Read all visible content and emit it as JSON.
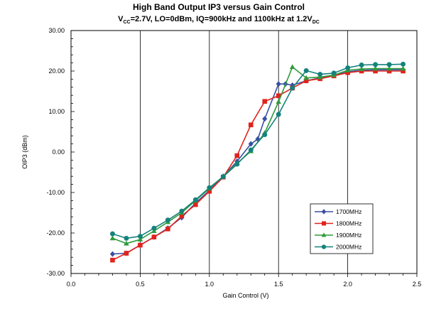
{
  "chart_data": {
    "type": "line",
    "title": "High Band Output IP3 versus Gain Control",
    "subtitle": {
      "parts": [
        {
          "text": "V",
          "sub": false
        },
        {
          "text": "CC",
          "sub": true
        },
        {
          "text": "=2.7V, LO=0dBm, IQ=900kHz and 1100kHz at 1.2V",
          "sub": false
        },
        {
          "text": "DC",
          "sub": true
        }
      ]
    },
    "xlabel": "Gain Control (V)",
    "ylabel": "OIP3 (dBm)",
    "xlim": [
      0.0,
      2.5
    ],
    "ylim": [
      -30,
      30
    ],
    "xticks": [
      0.0,
      0.5,
      1.0,
      1.5,
      2.0,
      2.5
    ],
    "xtick_labels": [
      "0.0",
      "0.5",
      "1.0",
      "1.5",
      "2.0",
      "2.5"
    ],
    "yticks": [
      -30,
      -20,
      -10,
      0,
      10,
      20,
      30
    ],
    "ytick_labels": [
      "-30.00",
      "-20.00",
      "-10.00",
      "0.00",
      "10.00",
      "20.00",
      "30.00"
    ],
    "grid": {
      "vertical_major": true,
      "horizontal": false
    },
    "legend_position": "bottom-right",
    "series": [
      {
        "name": "1700MHz",
        "color": "#3a4fa3",
        "marker": "diamond",
        "x": [
          0.3,
          0.4,
          0.5,
          0.6,
          0.7,
          0.8,
          0.9,
          1.0,
          1.1,
          1.2,
          1.3,
          1.35,
          1.4,
          1.5,
          1.55,
          1.6,
          1.7,
          1.8,
          1.9,
          2.0,
          2.1,
          2.2,
          2.3,
          2.4
        ],
        "y": [
          -25.2,
          -25.0,
          -23.0,
          -21.0,
          -18.8,
          -16.2,
          -12.6,
          -9.5,
          -6.0,
          -2.3,
          2.0,
          3.2,
          8.2,
          16.8,
          16.8,
          16.5,
          17.6,
          18.3,
          18.9,
          19.8,
          20.2,
          20.3,
          20.3,
          20.3
        ]
      },
      {
        "name": "1800MHz",
        "color": "#e0231c",
        "marker": "square",
        "x": [
          0.3,
          0.4,
          0.5,
          0.6,
          0.7,
          0.8,
          0.9,
          1.0,
          1.1,
          1.2,
          1.3,
          1.4,
          1.5,
          1.6,
          1.7,
          1.8,
          1.9,
          2.0,
          2.1,
          2.2,
          2.3,
          2.4
        ],
        "y": [
          -26.7,
          -25.0,
          -23.0,
          -21.0,
          -19.0,
          -15.8,
          -13.0,
          -9.7,
          -6.2,
          -0.9,
          6.7,
          12.5,
          13.9,
          15.8,
          17.6,
          18.1,
          18.8,
          19.6,
          20.0,
          20.0,
          20.0,
          20.0
        ]
      },
      {
        "name": "1900MHz",
        "color": "#2e9b3b",
        "marker": "triangle",
        "x": [
          0.3,
          0.4,
          0.5,
          0.6,
          0.7,
          0.8,
          0.9,
          1.0,
          1.1,
          1.2,
          1.3,
          1.4,
          1.5,
          1.6,
          1.7,
          1.8,
          1.9,
          2.0,
          2.1,
          2.2,
          2.3,
          2.4
        ],
        "y": [
          -21.3,
          -22.6,
          -21.6,
          -19.5,
          -17.3,
          -15.0,
          -12.0,
          -9.0,
          -6.0,
          -2.8,
          0.2,
          4.7,
          12.4,
          21.0,
          18.3,
          18.5,
          19.0,
          20.2,
          20.5,
          20.6,
          20.6,
          20.6
        ]
      },
      {
        "name": "2000MHz",
        "color": "#15827c",
        "marker": "circle",
        "x": [
          0.3,
          0.4,
          0.5,
          0.6,
          0.7,
          0.8,
          0.9,
          1.0,
          1.1,
          1.2,
          1.3,
          1.4,
          1.5,
          1.6,
          1.7,
          1.8,
          1.9,
          2.0,
          2.1,
          2.2,
          2.3,
          2.4
        ],
        "y": [
          -20.2,
          -21.3,
          -20.8,
          -18.8,
          -16.8,
          -14.6,
          -11.8,
          -8.8,
          -6.1,
          -3.0,
          0.5,
          4.3,
          9.3,
          15.8,
          20.1,
          19.2,
          19.5,
          20.8,
          21.5,
          21.6,
          21.6,
          21.7
        ]
      }
    ]
  }
}
